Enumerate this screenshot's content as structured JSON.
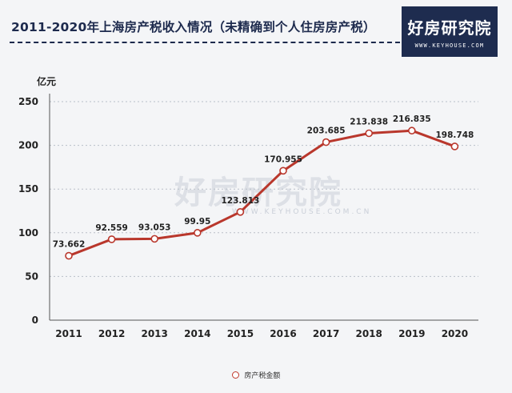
{
  "header": {
    "title": "2011-2020年上海房产税收入情况（未精确到个人住房房产税）",
    "brand_name": "好房研究院",
    "brand_url": "WWW.KEYHOUSE.COM"
  },
  "watermark": {
    "name": "好房研究院",
    "url": "WWW.KEYHOUSE.COM.CN"
  },
  "colors": {
    "line": "#b9372c",
    "marker_fill": "#ffffff",
    "title": "#1d2a4d",
    "brand_bg": "#1e2c4f",
    "background": "#f4f5f7"
  },
  "chart_data": {
    "type": "line",
    "title": "2011-2020年上海房产税收入情况（未精确到个人住房房产税）",
    "ylabel": "亿元",
    "xlabel": "",
    "categories": [
      "2011",
      "2012",
      "2013",
      "2014",
      "2015",
      "2016",
      "2017",
      "2018",
      "2019",
      "2020"
    ],
    "series": [
      {
        "name": "房产税金额",
        "values": [
          73.662,
          92.559,
          93.053,
          99.95,
          123.813,
          170.955,
          203.685,
          213.838,
          216.835,
          198.748
        ],
        "labels": [
          "73.662",
          "92.559",
          "93.053",
          "99.95",
          "123.813",
          "170.955",
          "203.685",
          "213.838",
          "216.835",
          "198.748"
        ]
      }
    ],
    "ylim": [
      0,
      250
    ],
    "yticks": [
      "0",
      "50",
      "100",
      "150",
      "200",
      "250"
    ],
    "grid": true,
    "legend": "bottom-center"
  }
}
